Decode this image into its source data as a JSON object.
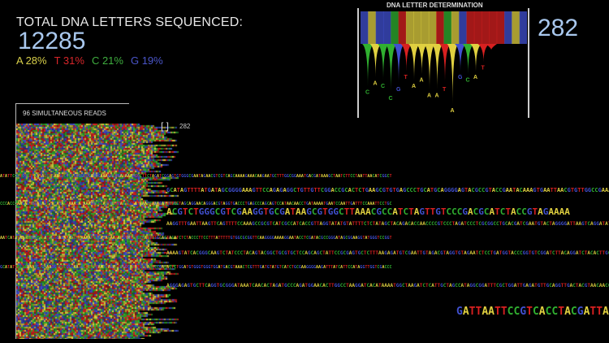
{
  "header": {
    "total_label": "TOTAL DNA LETTERS SEQUENCED:",
    "total_value": "12285",
    "percentages": [
      {
        "base": "A",
        "label": "A 28%",
        "color": "#d9d04a"
      },
      {
        "base": "T",
        "label": "T 31%",
        "color": "#d8262a"
      },
      {
        "base": "C",
        "label": "C 21%",
        "color": "#3fae3f"
      },
      {
        "base": "G",
        "label": "G 19%",
        "color": "#4a55c8"
      }
    ]
  },
  "reads": {
    "label": "96 SIMULTANEOUS READS",
    "count": "282",
    "bracket": "[ ]"
  },
  "determination": {
    "title": "DNA LETTER DETERMINATION",
    "value": "282",
    "band_bases": "GAGGCTAAAATCAGTTTTTGAG",
    "peaks": [
      {
        "b": "C",
        "h": 0.7
      },
      {
        "b": "A",
        "h": 0.55
      },
      {
        "b": "C",
        "h": 0.6
      },
      {
        "b": "C",
        "h": 0.8
      },
      {
        "b": "G",
        "h": 0.65
      },
      {
        "b": "T",
        "h": 0.45
      },
      {
        "b": "A",
        "h": 0.6
      },
      {
        "b": "A",
        "h": 0.5
      },
      {
        "b": "A",
        "h": 0.75
      },
      {
        "b": "A",
        "h": 0.75
      },
      {
        "b": "T",
        "h": 0.65
      },
      {
        "b": "A",
        "h": 1.0
      },
      {
        "b": "G",
        "h": 0.45
      },
      {
        "b": "C",
        "h": 0.5
      },
      {
        "b": "A",
        "h": 0.45
      },
      {
        "b": "T",
        "h": 0.3
      },
      {
        "b": "T",
        "h": 0.1
      }
    ]
  },
  "colors": {
    "A": "#e0d040",
    "T": "#d82020",
    "C": "#30b030",
    "G": "#4050d0"
  },
  "sequences": {
    "main": "ACGTCTGGGCGTCGAAGGTGCGATAAGCGTGGCTTAAACGCCATCTAGTTGTCCCGACGCATCTACCGTAGAAAA",
    "bottom": "GATTAATTCCGTCACCTACGATTA"
  }
}
